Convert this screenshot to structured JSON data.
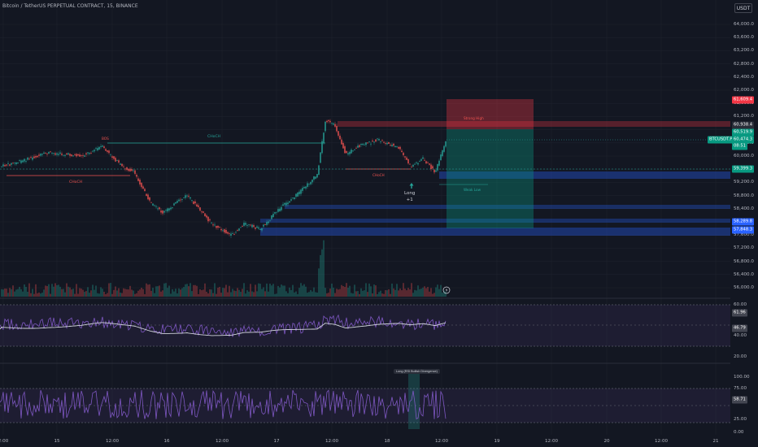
{
  "header": {
    "symbol_title": "Bitcoin / TetherUS PERPETUAL CONTRACT, 15, BINANCE",
    "currency_button": "USDT"
  },
  "price_axis": [
    "64,000.0",
    "63,600.0",
    "63,200.0",
    "62,800.0",
    "62,400.0",
    "62,000.0",
    "61,600.0",
    "61,200.0",
    "60,800.0",
    "60,400.0",
    "60,000.0",
    "59,600.0",
    "59,200.0",
    "58,800.0",
    "58,400.0",
    "58,000.0",
    "57,600.0",
    "57,200.0",
    "56,800.0",
    "56,400.0",
    "56,000.0"
  ],
  "price_tags": {
    "stop": "61,609.4",
    "target": "60,938.4",
    "entry": "60,519.9",
    "current_symbol": "BTCUSDT.P",
    "current_price": "60,474.3",
    "current_time": "08:51",
    "level_1": "59,399.3",
    "level_2": "58,289.8",
    "level_3": "57,848.3"
  },
  "rsi_axis": {
    "v60": "60.00",
    "v40": "40.00",
    "v20": "20.00",
    "tag_high": "61.96",
    "tag_low": "46.79"
  },
  "osc_axis": {
    "v100": "100.00",
    "v75": "75.00",
    "v50": "50.00",
    "v25": "25.00",
    "v0": "0.00",
    "tag": "58.71"
  },
  "time_axis": [
    "2:00",
    "15",
    "12:00",
    "16",
    "12:00",
    "17",
    "12:00",
    "18",
    "12:00",
    "19",
    "12:00",
    "20",
    "12:00",
    "21"
  ],
  "annotations": {
    "choch_top": "CHoCH",
    "choch_left": "CHoCH",
    "choch_right": "CHoCH",
    "strong_high": "Strong High",
    "weak_low": "Weak Low",
    "bos": "BOS",
    "long_label": "Long",
    "long_qty": "+1",
    "long_signal": "Long (RSI Bullish Divergence)"
  },
  "colors": {
    "background": "#131722",
    "up": "#26a69a",
    "down": "#ef5350",
    "stop_zone": "#f23645",
    "target_zone": "#089981",
    "rsi_line": "#7e57c2",
    "order_block": "#2962ff"
  }
}
